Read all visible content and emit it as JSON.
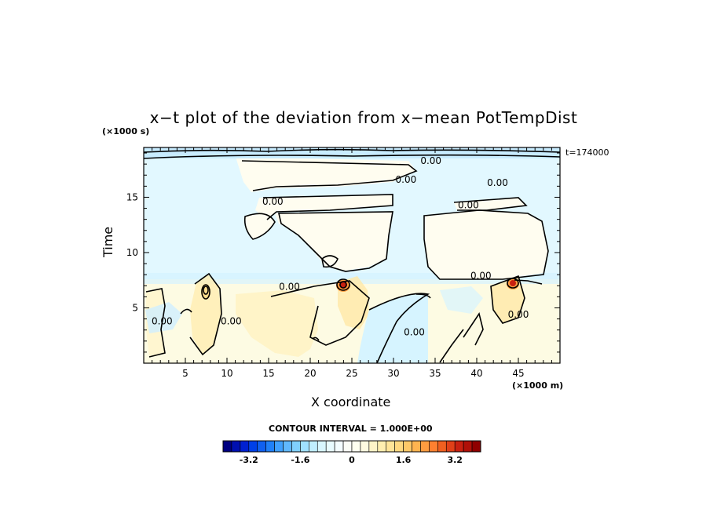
{
  "chart_data": {
    "type": "heatmap",
    "title": "x−t plot of the deviation from x−mean PotTempDist",
    "xlabel": "X coordinate",
    "x_unit_label": "(×1000 m)",
    "ylabel": "Time",
    "y_unit_label": "(×1000 s)",
    "annotation_right": "t=174000",
    "contour_interval_label": "CONTOUR INTERVAL = 1.000E+00",
    "xlim": [
      0,
      50
    ],
    "ylim": [
      0,
      19.5
    ],
    "x_ticks": [
      5,
      10,
      15,
      20,
      25,
      30,
      35,
      40,
      45
    ],
    "y_ticks": [
      5,
      10,
      15
    ],
    "contour_labels": [
      {
        "text": "0.00",
        "x": 34.5,
        "y": 18.3
      },
      {
        "text": "0.00",
        "x": 31.5,
        "y": 16.6
      },
      {
        "text": "0.00",
        "x": 42.5,
        "y": 16.3
      },
      {
        "text": "0.00",
        "x": 15.5,
        "y": 14.6
      },
      {
        "text": "0.00",
        "x": 39,
        "y": 14.3
      },
      {
        "text": "0.00",
        "x": 40.5,
        "y": 7.9
      },
      {
        "text": "0.00",
        "x": 17.5,
        "y": 6.9
      },
      {
        "text": "0.00",
        "x": 2.2,
        "y": 3.8
      },
      {
        "text": "0.00",
        "x": 10.5,
        "y": 3.8
      },
      {
        "text": "0.00",
        "x": 32.5,
        "y": 2.8
      },
      {
        "text": "0.00",
        "x": 45,
        "y": 4.4
      }
    ],
    "colorbar": {
      "min": -4.0,
      "max": 4.0,
      "ticks": [
        "-3.2",
        "-1.6",
        "0",
        "1.6",
        "3.2"
      ],
      "tick_values": [
        -3.2,
        -1.6,
        0,
        1.6,
        3.2
      ],
      "colors": [
        "#000080",
        "#0010b0",
        "#0020d0",
        "#0040e8",
        "#1060f0",
        "#2080f8",
        "#40a0ff",
        "#60b8ff",
        "#80d0ff",
        "#a0e0ff",
        "#c0eeff",
        "#d8f6ff",
        "#e8fbff",
        "#f4fdff",
        "#fbfdf6",
        "#fffff0",
        "#fffae0",
        "#fff4c8",
        "#ffeeb0",
        "#ffe498",
        "#ffd880",
        "#ffc868",
        "#ffb450",
        "#ff9c40",
        "#ff8030",
        "#f06020",
        "#e04018",
        "#c82010",
        "#b01008",
        "#900000"
      ]
    }
  }
}
